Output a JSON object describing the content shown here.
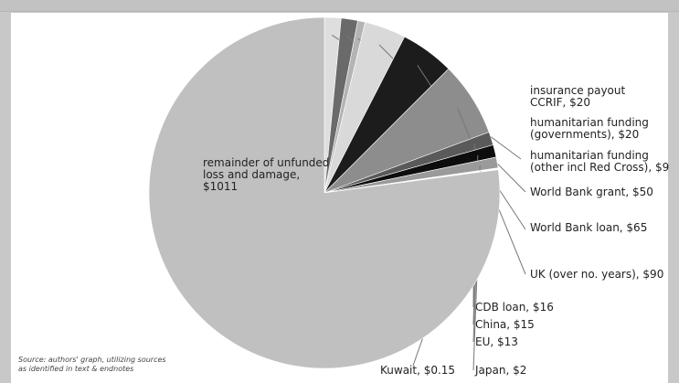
{
  "chart_data": {
    "type": "pie",
    "title": "",
    "slices": [
      {
        "label": "insurance payout CCRIF, $20",
        "lines": [
          "insurance payout",
          "CCRIF, $20"
        ],
        "value": 20,
        "color": "#dedede"
      },
      {
        "label": "humanitarian funding (governments), $20",
        "lines": [
          "humanitarian funding",
          "(governments), $20"
        ],
        "value": 20,
        "color": "#6a6a6a"
      },
      {
        "label": "humanitarian funding (other incl Red Cross), $9",
        "lines": [
          "humanitarian funding",
          "(other incl Red Cross), $9"
        ],
        "value": 9,
        "color": "#b4b4b4"
      },
      {
        "label": "World Bank grant, $50",
        "lines": [
          "World Bank grant, $50"
        ],
        "value": 50,
        "color": "#d9d9d9"
      },
      {
        "label": "World Bank loan, $65",
        "lines": [
          "World Bank loan, $65"
        ],
        "value": 65,
        "color": "#1c1c1c"
      },
      {
        "label": "UK (over no. years), $90",
        "lines": [
          "UK (over no. years), $90"
        ],
        "value": 90,
        "color": "#8d8d8d"
      },
      {
        "label": "CDB loan, $16",
        "lines": [
          "CDB loan, $16"
        ],
        "value": 16,
        "color": "#5a5a5a"
      },
      {
        "label": "China, $15",
        "lines": [
          "China, $15"
        ],
        "value": 15,
        "color": "#0d0d0d"
      },
      {
        "label": "EU, $13",
        "lines": [
          "EU, $13"
        ],
        "value": 13,
        "color": "#9a9a9a"
      },
      {
        "label": "Japan, $2",
        "lines": [
          "Japan, $2"
        ],
        "value": 2,
        "color": "#ffffff"
      },
      {
        "label": "Kuwait, $0.15",
        "lines": [
          "Kuwait, $0.15"
        ],
        "value": 0.15,
        "color": "#4a4a4a"
      },
      {
        "label": "remainder of unfunded loss and damage, $1011",
        "lines": [
          "remainder of unfunded",
          "loss and damage,",
          "$1011"
        ],
        "value": 1011,
        "color": "#c0c0c0"
      }
    ],
    "source_lines": [
      "Source: authors' graph, utilizing sources",
      "as identified in text & endnotes"
    ]
  }
}
